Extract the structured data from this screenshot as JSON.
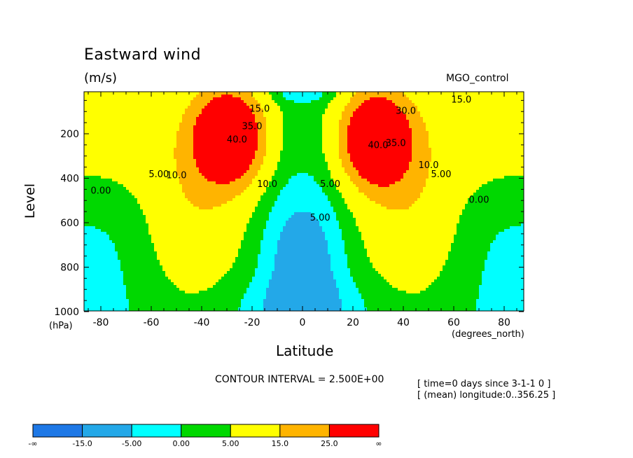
{
  "chart_data": {
    "type": "contour",
    "title": "Eastward wind",
    "units": "(m/s)",
    "run_label": "MGO_control",
    "xlabel": "Latitude",
    "x_units": "(degrees_north)",
    "ylabel": "Level",
    "y_units": "(hPa)",
    "xlim": [
      -87.5,
      87.5
    ],
    "ylim": [
      1000,
      0
    ],
    "x_ticks": [
      -80,
      -60,
      -40,
      -20,
      0,
      20,
      40,
      60,
      80
    ],
    "y_ticks": [
      200,
      400,
      600,
      800,
      1000
    ],
    "contour_interval_text": "CONTOUR INTERVAL = 2.500E+00",
    "contour_labels": [
      {
        "text": "0.00",
        "lat": -80,
        "p": 470
      },
      {
        "text": "0.00",
        "lat": 70,
        "p": 510
      },
      {
        "text": "5.00",
        "lat": -57,
        "p": 395
      },
      {
        "text": "5.00",
        "lat": 55,
        "p": 395
      },
      {
        "text": "10.0",
        "lat": -50,
        "p": 400
      },
      {
        "text": "10.0",
        "lat": 50,
        "p": 355
      },
      {
        "text": "15.0",
        "lat": -17,
        "p": 100
      },
      {
        "text": "15.0",
        "lat": 63,
        "p": 60
      },
      {
        "text": "40.0",
        "lat": -26,
        "p": 240
      },
      {
        "text": "40.0",
        "lat": 30,
        "p": 265
      },
      {
        "text": "35.0",
        "lat": -20,
        "p": 180
      },
      {
        "text": "35.0",
        "lat": 37,
        "p": 255
      },
      {
        "text": "30.0",
        "lat": 41,
        "p": 110
      },
      {
        "text": "10.0",
        "lat": -14,
        "p": 440
      },
      {
        "text": "5.00",
        "lat": 7,
        "p": 590
      },
      {
        "text": "5.00",
        "lat": 11,
        "p": 440
      }
    ],
    "color_scale": {
      "labels": [
        "-∞",
        "-15.0",
        "-5.00",
        "0.00",
        "5.00",
        "15.0",
        "25.0",
        "∞"
      ],
      "colors": [
        "#1e78e6",
        "#23a8e8",
        "#00ffff",
        "#00d800",
        "#ffff00",
        "#ffb400",
        "#ff0000"
      ]
    },
    "info_lines": [
      "[ time=0 days since 3-1-1 0 ]",
      "[ (mean) longitude:0..356.25 ]"
    ]
  }
}
